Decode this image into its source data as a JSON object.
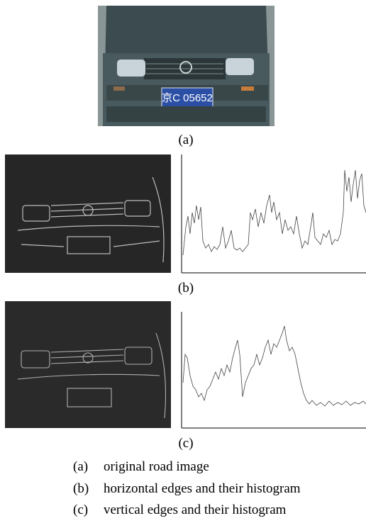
{
  "figure": {
    "panels": [
      {
        "label": "(a)",
        "plate": "京C 05652"
      },
      {
        "label": "(b)"
      },
      {
        "label": "(c)"
      }
    ],
    "caption": [
      {
        "label": "(a)",
        "text": "original road image"
      },
      {
        "label": "(b)",
        "text": "horizontal edges and their histogram"
      },
      {
        "label": "(c)",
        "text": "vertical edges and their histogram"
      }
    ]
  }
}
